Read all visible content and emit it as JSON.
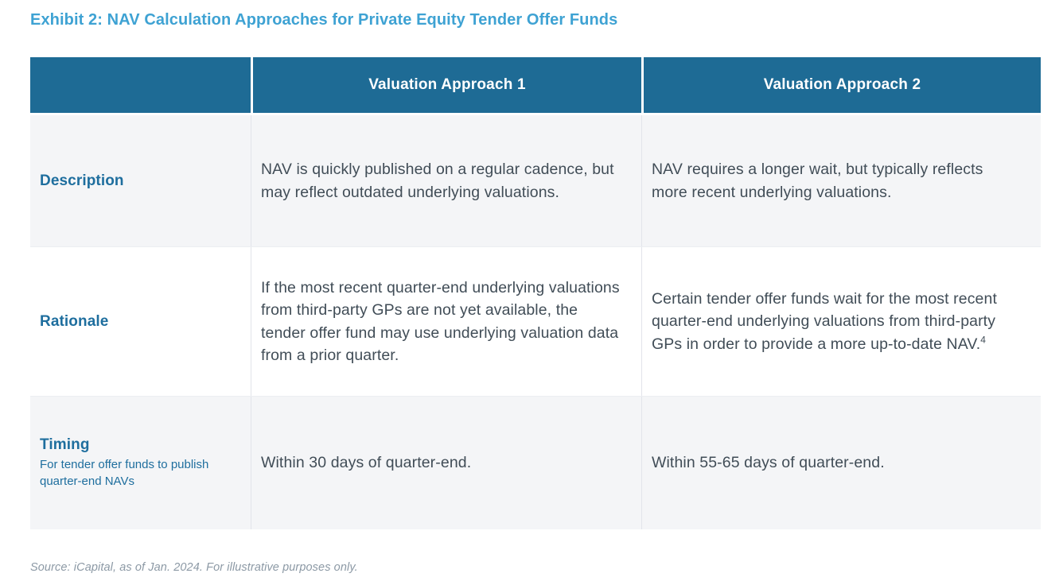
{
  "page": {
    "title": "Exhibit 2: NAV Calculation Approaches for Private Equity Tender Offer Funds",
    "source_note": "Source: iCapital, as of Jan. 2024. For illustrative purposes only."
  },
  "colors": {
    "title_blue": "#3EA2D3",
    "header_bg": "#1E6B95",
    "header_text": "#FFFFFF",
    "label_teal": "#1E6E9E",
    "body_text": "#414D57",
    "striped_row_bg": "#F4F5F7",
    "plain_row_bg": "#FFFFFF",
    "source_gray": "#8C99A5"
  },
  "table": {
    "columns": [
      "",
      "Valuation Approach 1",
      "Valuation Approach 2"
    ],
    "rows": [
      {
        "label": "Description",
        "sublabel": "",
        "approach1": "NAV is quickly published on a regular cadence, but may reflect outdated underlying valuations.",
        "approach2": "NAV requires a longer wait, but typically reflects more recent underlying valuations.",
        "approach2_footnote": ""
      },
      {
        "label": "Rationale",
        "sublabel": "",
        "approach1": "If the most recent quarter-end underlying valuations from third-party GPs are not yet available, the tender offer fund may use underlying valuation data from a prior quarter.",
        "approach2": "Certain tender offer funds wait for the most recent quarter-end underlying valuations from third-party GPs in order to provide a more up-to-date NAV.",
        "approach2_footnote": "4"
      },
      {
        "label": "Timing",
        "sublabel": "For tender offer funds to publish quarter-end NAVs",
        "approach1": "Within 30 days of quarter-end.",
        "approach2": "Within 55-65 days of quarter-end.",
        "approach2_footnote": ""
      }
    ]
  }
}
